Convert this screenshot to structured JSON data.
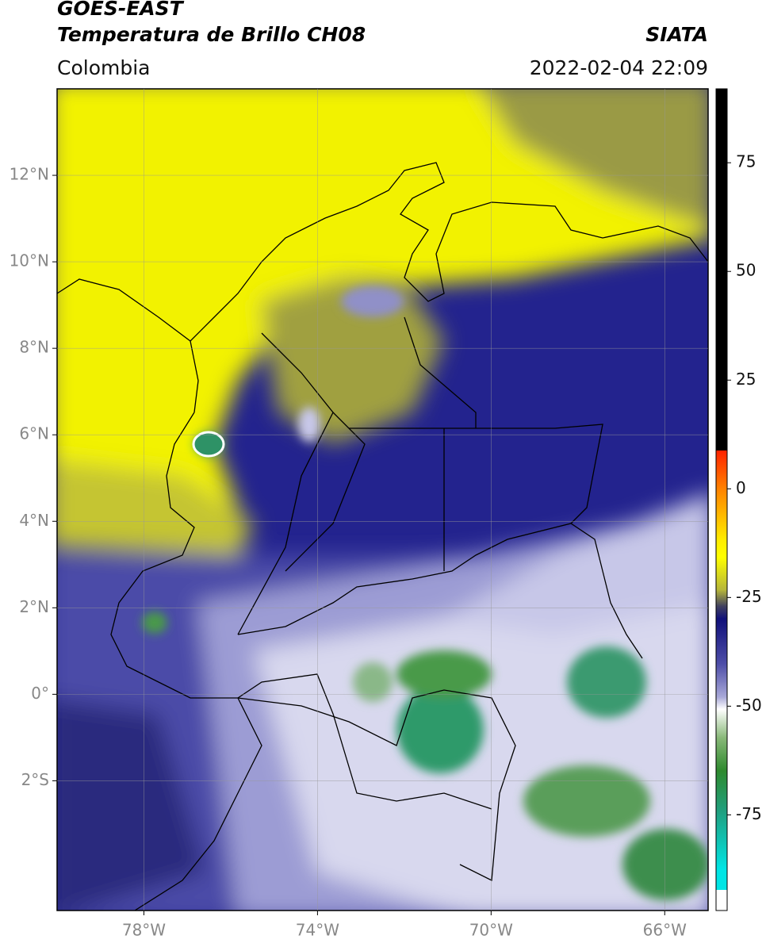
{
  "header": {
    "satellite": "GOES-EAST",
    "product": "Temperatura de Brillo CH08",
    "source": "SIATA",
    "region": "Colombia",
    "datetime": "2022-02-04 22:09"
  },
  "map": {
    "xlim": [
      -80,
      -65
    ],
    "ylim": [
      -5,
      14
    ],
    "xticks": [
      {
        "value": -78,
        "label": "78°W"
      },
      {
        "value": -74,
        "label": "74°W"
      },
      {
        "value": -70,
        "label": "70°W"
      },
      {
        "value": -66,
        "label": "66°W"
      }
    ],
    "yticks": [
      {
        "value": 12,
        "label": "12°N"
      },
      {
        "value": 10,
        "label": "10°N"
      },
      {
        "value": 8,
        "label": "8°N"
      },
      {
        "value": 6,
        "label": "6°N"
      },
      {
        "value": 4,
        "label": "4°N"
      },
      {
        "value": 2,
        "label": "2°N"
      },
      {
        "value": 0,
        "label": "0°"
      },
      {
        "value": -2,
        "label": "2°S"
      }
    ],
    "grid": true
  },
  "colorbar": {
    "lim": [
      -97,
      92
    ],
    "ticks": [
      75,
      50,
      25,
      0,
      -25,
      -50,
      -75
    ]
  }
}
